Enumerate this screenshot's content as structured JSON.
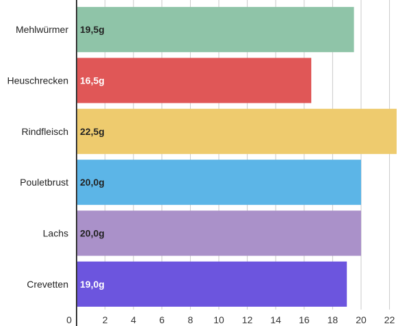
{
  "chart_data": {
    "type": "bar",
    "orientation": "horizontal",
    "categories": [
      "Mehlwürmer",
      "Heuschrecken",
      "Rindfleisch",
      "Pouletbrust",
      "Lachs",
      "Crevetten"
    ],
    "values": [
      19.5,
      16.5,
      22.5,
      20.0,
      20.0,
      19.0
    ],
    "data_labels": [
      "19,5g",
      "16,5g",
      "22,5g",
      "20,0g",
      "20,0g",
      "19,0g"
    ],
    "colors": [
      "#8fc4a8",
      "#e05757",
      "#eecb6e",
      "#5cb5e7",
      "#aa91c9",
      "#6c55de"
    ],
    "label_colors": [
      "#222222",
      "#ffffff",
      "#222222",
      "#222222",
      "#222222",
      "#ffffff"
    ],
    "x_ticks": [
      "0",
      "2",
      "4",
      "6",
      "8",
      "10",
      "12",
      "14",
      "16",
      "18",
      "20",
      "22"
    ],
    "xlim": [
      0,
      22.5
    ],
    "grid": true,
    "title": "",
    "xlabel": "",
    "ylabel": ""
  }
}
